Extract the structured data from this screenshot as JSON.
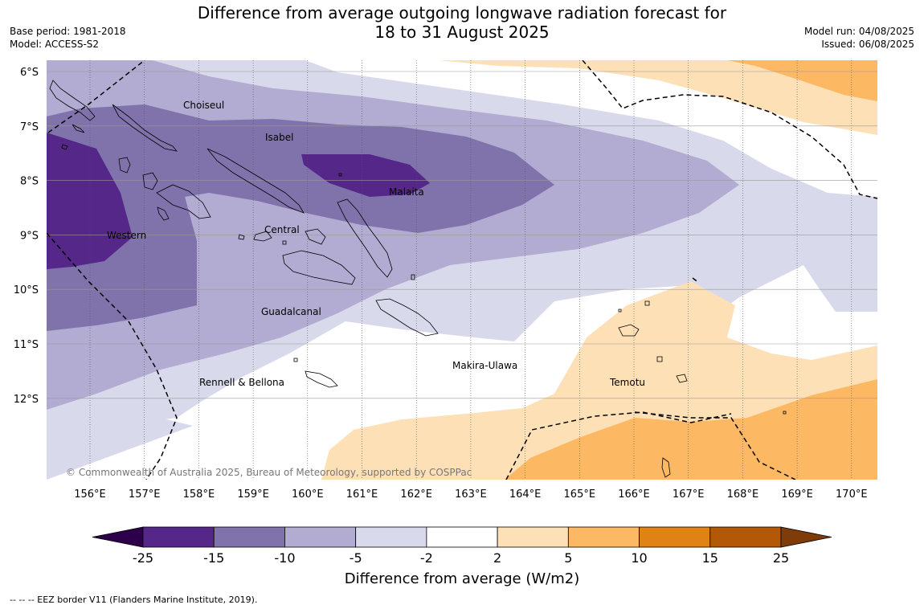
{
  "header": {
    "title_line1": "Difference from average outgoing longwave radiation forecast for",
    "title_line2": "18 to 31 August 2025",
    "base_period": "Base period: 1981-2018",
    "model": "Model: ACCESS-S2",
    "model_run": "Model run: 04/08/2025",
    "issued": "Issued: 06/08/2025"
  },
  "map": {
    "lat_labels": [
      "6°S",
      "7°S",
      "8°S",
      "9°S",
      "10°S",
      "11°S",
      "12°S"
    ],
    "lon_labels": [
      "156°E",
      "157°E",
      "158°E",
      "159°E",
      "160°E",
      "161°E",
      "162°E",
      "163°E",
      "164°E",
      "165°E",
      "166°E",
      "167°E",
      "168°E",
      "169°E",
      "170°E"
    ],
    "regions": {
      "choiseul": "Choiseul",
      "isabel": "Isabel",
      "malaita": "Malaita",
      "western": "Western",
      "central": "Central",
      "guadalcanal": "Guadalcanal",
      "makira": "Makira-Ulawa",
      "rennell": "Rennell & Bellona",
      "temotu": "Temotu"
    },
    "copyright": "© Commonwealth of Australia 2025, Bureau of Meteorology, supported by COSPPac"
  },
  "colorbar": {
    "ticks": [
      "-25",
      "-15",
      "-10",
      "-5",
      "-2",
      "2",
      "5",
      "10",
      "15",
      "25"
    ],
    "colors": [
      "#2d004b",
      "#542788",
      "#8073ac",
      "#b2abd2",
      "#d8daeb",
      "#ffffff",
      "#fee0b6",
      "#fdb863",
      "#e08214",
      "#b35806",
      "#7f3b08"
    ],
    "title": "Difference from average (W/m2)"
  },
  "footnote": "--  --  -- EEZ border V11 (Flanders Marine Institute, 2019)."
}
